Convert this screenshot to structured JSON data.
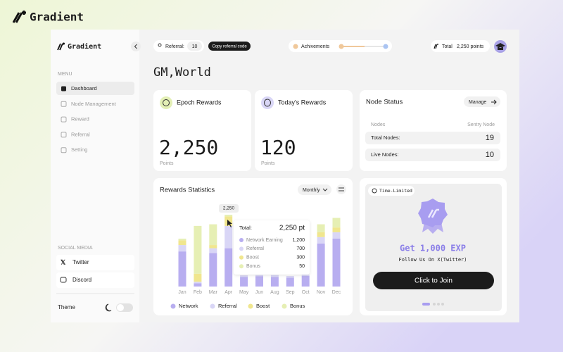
{
  "brand": "Gradient",
  "sidebar": {
    "brand": "Gradient",
    "menu_title": "MENU",
    "menu": [
      "Dashboard",
      "Node Management",
      "Reward",
      "Referral",
      "Setting"
    ],
    "social_title": "SOCIAL MEDIA",
    "social": [
      "Twitter",
      "Discord"
    ],
    "theme": "Theme"
  },
  "topbar": {
    "referral_label": "Referral:",
    "referral_count": "10",
    "copy_button": "Copy referral code",
    "achievements": "Achivements",
    "total_label": "Total",
    "total_points": "2,250 points"
  },
  "greeting": "GM,World",
  "cards": [
    {
      "title": "Epoch Rewards",
      "value": "2,250",
      "unit": "Points"
    },
    {
      "title": "Today's Rewards",
      "value": "120",
      "unit": "Points"
    }
  ],
  "node_status": {
    "title": "Node Status",
    "button": "Manage",
    "columns": [
      "Nodes",
      "Sentry Node"
    ],
    "rows": [
      [
        "Total Nodes:",
        "19"
      ],
      [
        "Live Nodes:",
        "10"
      ]
    ]
  },
  "promo": {
    "badge": "Time-Limited",
    "title": "Get 1,000 EXP",
    "subtitle": "Follow Us On X(Twitter)",
    "button": "Click to Join"
  },
  "chart_data": {
    "type": "stacked_bar",
    "title": "Rewards Statistics",
    "dropdown": "Monthly",
    "categories": [
      "Jan",
      "Feb",
      "Mar",
      "Apr",
      "May",
      "Jun",
      "Aug",
      "Sep",
      "Oct",
      "Nov",
      "Dec"
    ],
    "series": [
      {
        "name": "Network",
        "color": "#b8aef0",
        "values": [
          1100,
          100,
          1050,
          1200,
          300,
          320,
          300,
          280,
          330,
          1350,
          1500
        ]
      },
      {
        "name": "Referral",
        "color": "#d9d6f6",
        "values": [
          200,
          50,
          150,
          700,
          50,
          40,
          60,
          50,
          40,
          200,
          200
        ]
      },
      {
        "name": "Boost",
        "color": "#f0e68e",
        "values": [
          150,
          250,
          100,
          300,
          0,
          0,
          0,
          0,
          0,
          150,
          150
        ]
      },
      {
        "name": "Bonus",
        "color": "#e6efb4",
        "values": [
          50,
          1500,
          650,
          50,
          0,
          0,
          0,
          0,
          0,
          250,
          300
        ]
      }
    ],
    "tooltip": {
      "peak": "2,250",
      "title": "Total:",
      "total": "2,250 pt",
      "items": [
        {
          "name": "Network Earning",
          "value": "1,200"
        },
        {
          "name": "Referral",
          "value": "700"
        },
        {
          "name": "Boost",
          "value": "300"
        },
        {
          "name": "Bonus",
          "value": "50"
        }
      ]
    }
  }
}
